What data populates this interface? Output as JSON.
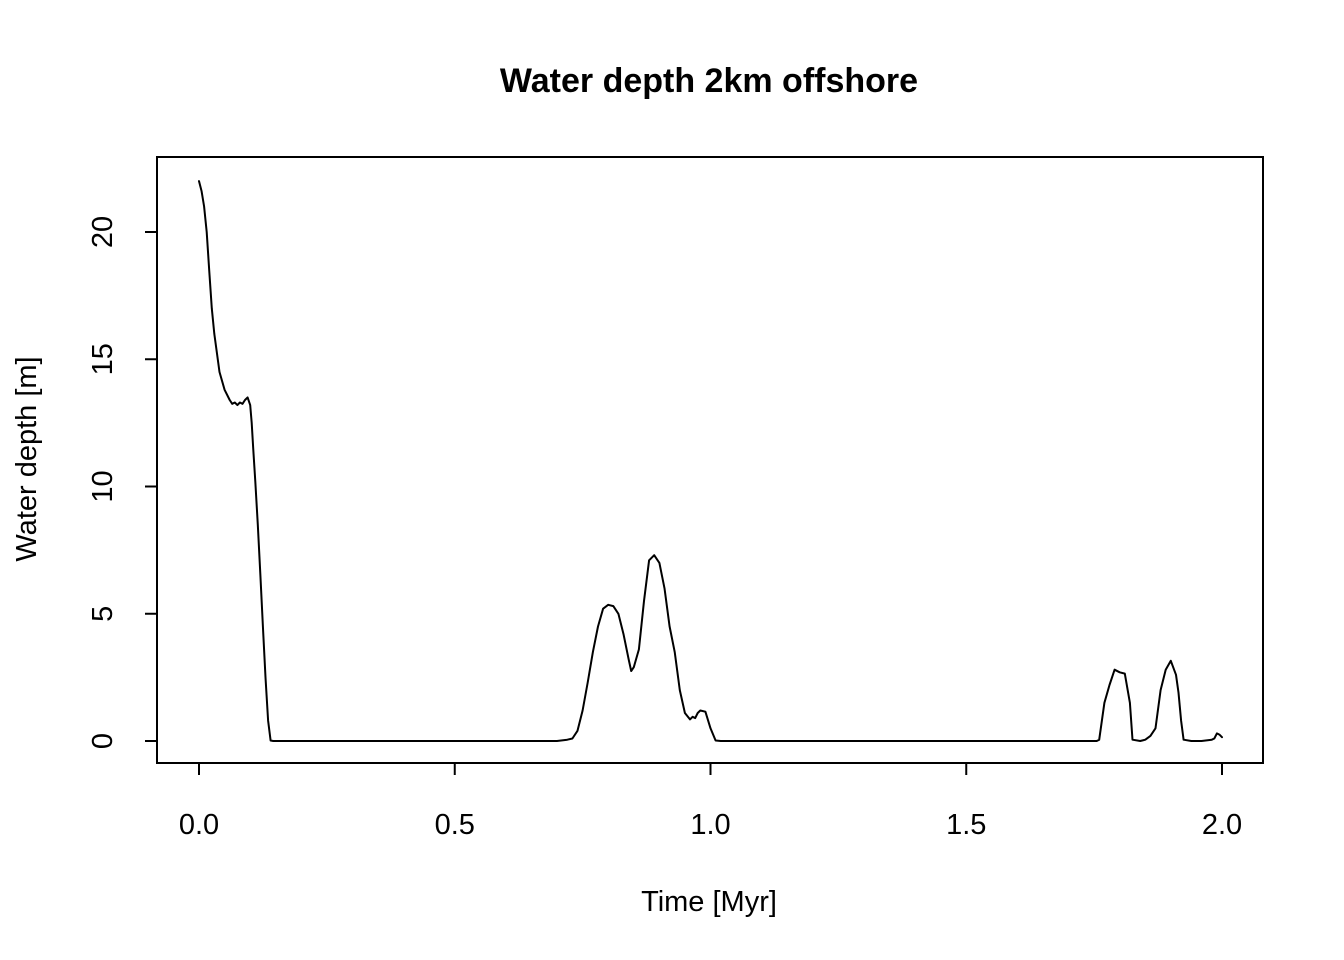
{
  "chart_data": {
    "type": "line",
    "title": "Water depth 2km offshore",
    "xlabel": "Time [Myr]",
    "ylabel": "Water depth [m]",
    "xlim": [
      0,
      2
    ],
    "ylim": [
      0,
      22
    ],
    "x_ticks": [
      0.0,
      0.5,
      1.0,
      1.5,
      2.0
    ],
    "x_tick_labels": [
      "0.0",
      "0.5",
      "1.0",
      "1.5",
      "2.0"
    ],
    "y_ticks": [
      0,
      5,
      10,
      15,
      20
    ],
    "y_tick_labels": [
      "0",
      "5",
      "10",
      "15",
      "20"
    ],
    "grid": false,
    "legend": "none",
    "line_color": "#000000",
    "series": [
      {
        "x": [
          0.0,
          0.005,
          0.01,
          0.015,
          0.02,
          0.025,
          0.03,
          0.04,
          0.05,
          0.06,
          0.065,
          0.07,
          0.075,
          0.08,
          0.085,
          0.09,
          0.095,
          0.1,
          0.103,
          0.106,
          0.11,
          0.115,
          0.12,
          0.125,
          0.13,
          0.135,
          0.14,
          0.145,
          0.15,
          0.155,
          0.16,
          0.165,
          0.2,
          0.3,
          0.4,
          0.5,
          0.6,
          0.68,
          0.7,
          0.72,
          0.73,
          0.74,
          0.75,
          0.76,
          0.77,
          0.78,
          0.79,
          0.8,
          0.81,
          0.82,
          0.83,
          0.84,
          0.845,
          0.85,
          0.86,
          0.87,
          0.88,
          0.89,
          0.9,
          0.91,
          0.92,
          0.93,
          0.94,
          0.95,
          0.96,
          0.965,
          0.97,
          0.975,
          0.98,
          0.99,
          1.0,
          1.01,
          1.02,
          1.1,
          1.3,
          1.5,
          1.7,
          1.755,
          1.76,
          1.77,
          1.78,
          1.79,
          1.8,
          1.81,
          1.82,
          1.825,
          1.84,
          1.85,
          1.86,
          1.87,
          1.88,
          1.89,
          1.9,
          1.91,
          1.915,
          1.92,
          1.925,
          1.94,
          1.96,
          1.98,
          1.985,
          1.99,
          1.995,
          2.0
        ],
        "y": [
          22.0,
          21.6,
          21.0,
          20.0,
          18.5,
          17.0,
          16.0,
          14.5,
          13.8,
          13.4,
          13.25,
          13.3,
          13.2,
          13.3,
          13.25,
          13.4,
          13.5,
          13.2,
          12.5,
          11.5,
          10.2,
          8.5,
          6.5,
          4.5,
          2.5,
          0.8,
          0.02,
          0.0,
          0.0,
          0.0,
          0.0,
          0.0,
          0.0,
          0.0,
          0.0,
          0.0,
          0.0,
          0.0,
          0.0,
          0.05,
          0.1,
          0.4,
          1.2,
          2.3,
          3.5,
          4.5,
          5.2,
          5.35,
          5.3,
          5.0,
          4.2,
          3.2,
          2.75,
          2.9,
          3.6,
          5.5,
          7.1,
          7.3,
          7.0,
          6.0,
          4.5,
          3.5,
          2.0,
          1.1,
          0.85,
          0.95,
          0.9,
          1.1,
          1.2,
          1.15,
          0.5,
          0.02,
          0.0,
          0.0,
          0.0,
          0.0,
          0.0,
          0.0,
          0.05,
          1.5,
          2.2,
          2.8,
          2.7,
          2.65,
          1.5,
          0.05,
          0.0,
          0.05,
          0.2,
          0.5,
          2.0,
          2.8,
          3.15,
          2.6,
          1.9,
          0.8,
          0.05,
          0.0,
          0.0,
          0.05,
          0.1,
          0.3,
          0.25,
          0.15
        ]
      }
    ]
  }
}
